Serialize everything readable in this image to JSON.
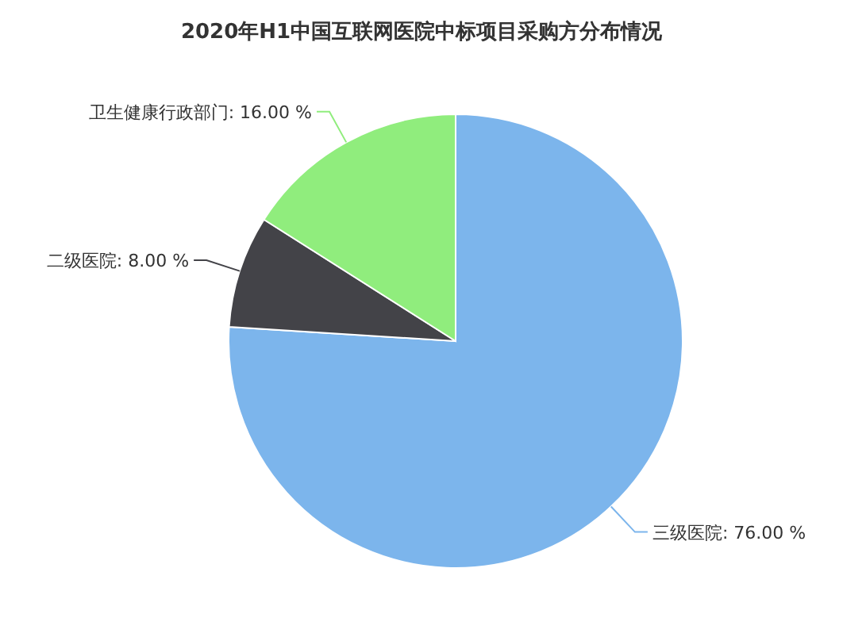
{
  "chart_data": {
    "type": "pie",
    "title": "2020年H1中国互联网医院中标项目采购方分布情况",
    "categories": [
      "三级医院",
      "二级医院",
      "卫生健康行政部门"
    ],
    "values": [
      76,
      8,
      16
    ],
    "value_labels": [
      "76.00 %",
      "8.00 %",
      "16.00 %"
    ],
    "colors": [
      "#7cb5ec",
      "#434348",
      "#90ed7d"
    ]
  }
}
